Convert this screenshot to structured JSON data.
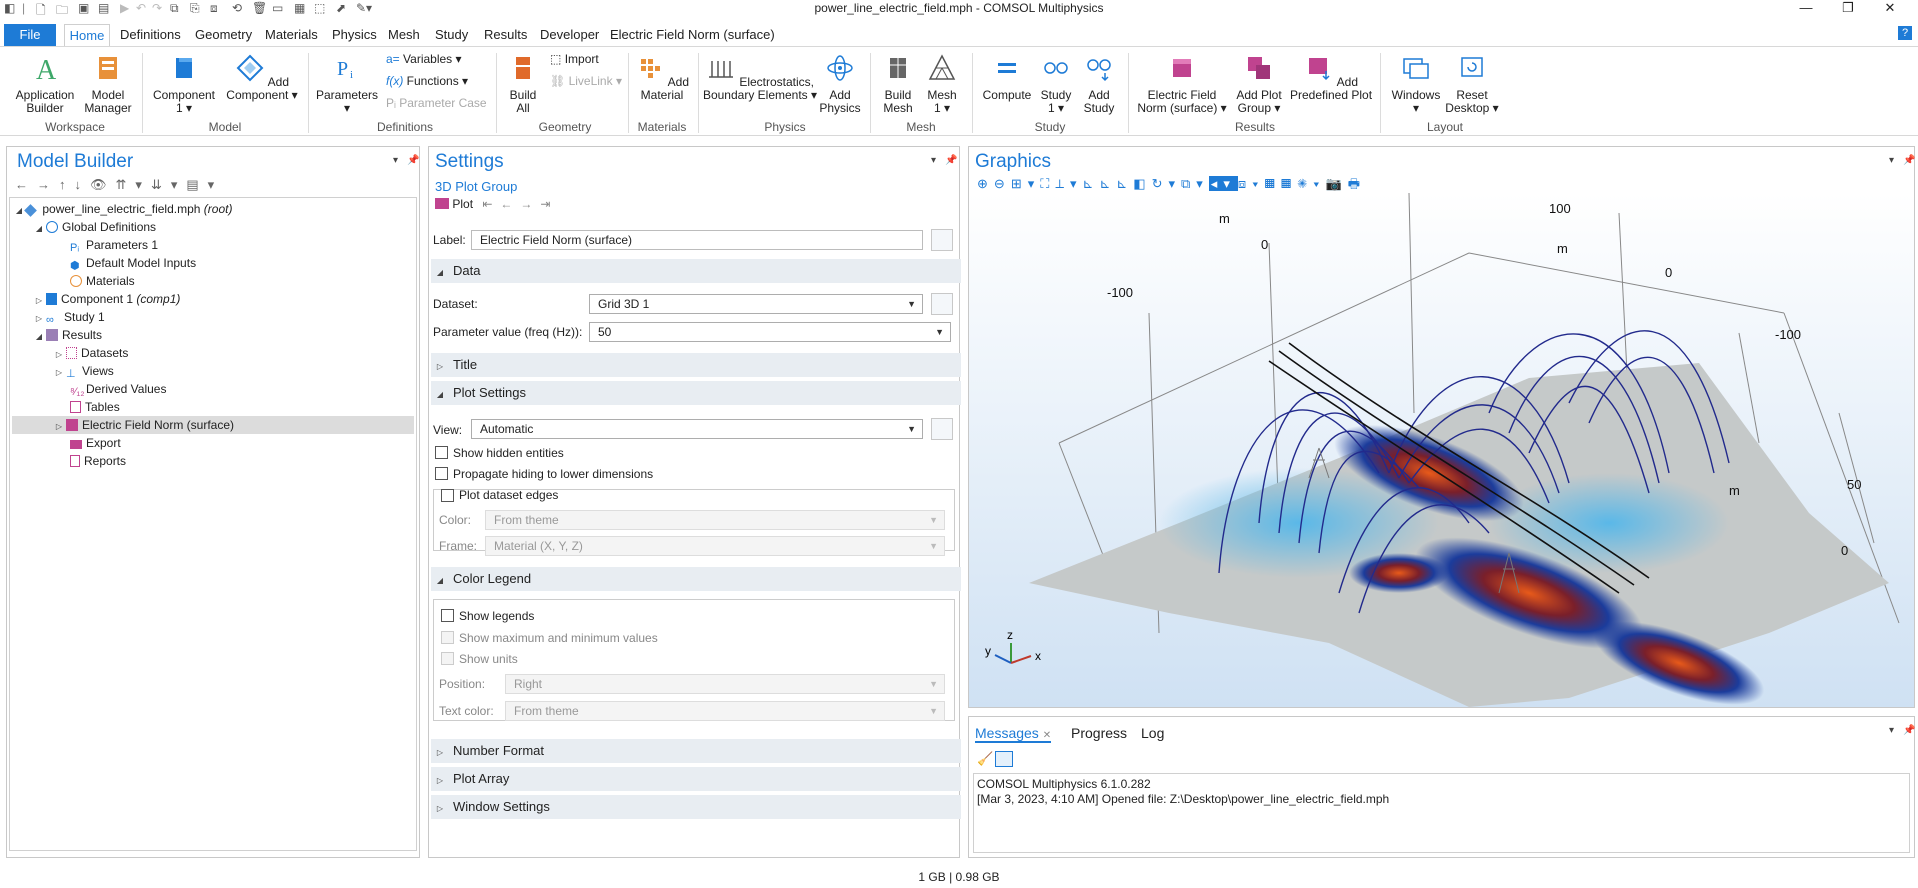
{
  "window": {
    "title": "power_line_electric_field.mph - COMSOL Multiphysics"
  },
  "menu": {
    "file": "File",
    "items": [
      "Home",
      "Definitions",
      "Geometry",
      "Materials",
      "Physics",
      "Mesh",
      "Study",
      "Results",
      "Developer",
      "Electric Field Norm (surface)"
    ]
  },
  "ribbon": {
    "application_builder": "Application\nBuilder",
    "model_manager": "Model\nManager",
    "component": "Component\n1 ▾",
    "add_component": "Add\nComponent ▾",
    "parameters": "Parameters\n▾",
    "variables": "Variables ▾",
    "functions": "Functions ▾",
    "parameter_case": "Parameter Case",
    "build_all": "Build\nAll",
    "import": "Import",
    "livelink": "LiveLink ▾",
    "add_material": "Add\nMaterial",
    "electrostatics": "Electrostatics,\nBoundary Elements ▾",
    "add_physics": "Add\nPhysics",
    "build_mesh": "Build\nMesh",
    "mesh": "Mesh\n1 ▾",
    "compute": "Compute",
    "study": "Study\n1 ▾",
    "add_study": "Add\nStudy",
    "electric_field_norm": "Electric Field\nNorm (surface) ▾",
    "add_plot_group": "Add Plot\nGroup ▾",
    "add_predefined_plot": "Add\nPredefined Plot",
    "windows": "Windows\n▾",
    "reset_desktop": "Reset\nDesktop ▾",
    "groups": {
      "workspace": "Workspace",
      "model": "Model",
      "definitions": "Definitions",
      "geometry": "Geometry",
      "materials": "Materials",
      "physics": "Physics",
      "mesh": "Mesh",
      "study": "Study",
      "results": "Results",
      "layout": "Layout"
    }
  },
  "model_builder": {
    "title": "Model Builder",
    "root_name": "power_line_electric_field.mph",
    "root_suffix": "(root)",
    "global_definitions": "Global Definitions",
    "parameters": "Parameters 1",
    "default_inputs": "Default Model Inputs",
    "materials": "Materials",
    "component": "Component 1",
    "component_suffix": "(comp1)",
    "study": "Study 1",
    "results": "Results",
    "datasets": "Datasets",
    "views": "Views",
    "derived_values": "Derived Values",
    "tables": "Tables",
    "efield_plot": "Electric Field Norm (surface)",
    "export": "Export",
    "reports": "Reports"
  },
  "settings": {
    "title": "Settings",
    "subtitle": "3D Plot Group",
    "plot_btn": "Plot",
    "label_caption": "Label:",
    "label_value": "Electric Field Norm (surface)",
    "section_data": "Data",
    "dataset_caption": "Dataset:",
    "dataset_value": "Grid 3D 1",
    "param_caption": "Parameter value (freq (Hz)):",
    "param_value": "50",
    "section_title": "Title",
    "section_plot_settings": "Plot Settings",
    "view_caption": "View:",
    "view_value": "Automatic",
    "show_hidden": "Show hidden entities",
    "propagate": "Propagate hiding to lower dimensions",
    "plot_edges": "Plot dataset edges",
    "color_caption": "Color:",
    "color_value": "From theme",
    "frame_caption": "Frame:",
    "frame_value": "Material  (X, Y, Z)",
    "section_color_legend": "Color Legend",
    "show_legends": "Show legends",
    "show_maxmin": "Show maximum and minimum values",
    "show_units": "Show units",
    "position_caption": "Position:",
    "position_value": "Right",
    "textcolor_caption": "Text color:",
    "textcolor_value": "From theme",
    "section_number_format": "Number Format",
    "section_plot_array": "Plot Array",
    "section_window_settings": "Window Settings"
  },
  "graphics": {
    "title": "Graphics",
    "axis_labels": {
      "m1": "m",
      "m2": "m",
      "m3": "m",
      "t100top": "100",
      "t0a": "0",
      "tm100a": "-100",
      "t0b": "0",
      "tm100b": "-100",
      "t50": "50",
      "t0c": "0",
      "x": "x",
      "y": "y",
      "z": "z"
    }
  },
  "messages": {
    "tab_messages": "Messages",
    "tab_progress": "Progress",
    "tab_log": "Log",
    "line1": "COMSOL Multiphysics 6.1.0.282",
    "line2": "[Mar 3, 2023, 4:10 AM] Opened file: Z:\\Desktop\\power_line_electric_field.mph"
  },
  "status": {
    "memory": "1 GB | 0.98 GB"
  }
}
